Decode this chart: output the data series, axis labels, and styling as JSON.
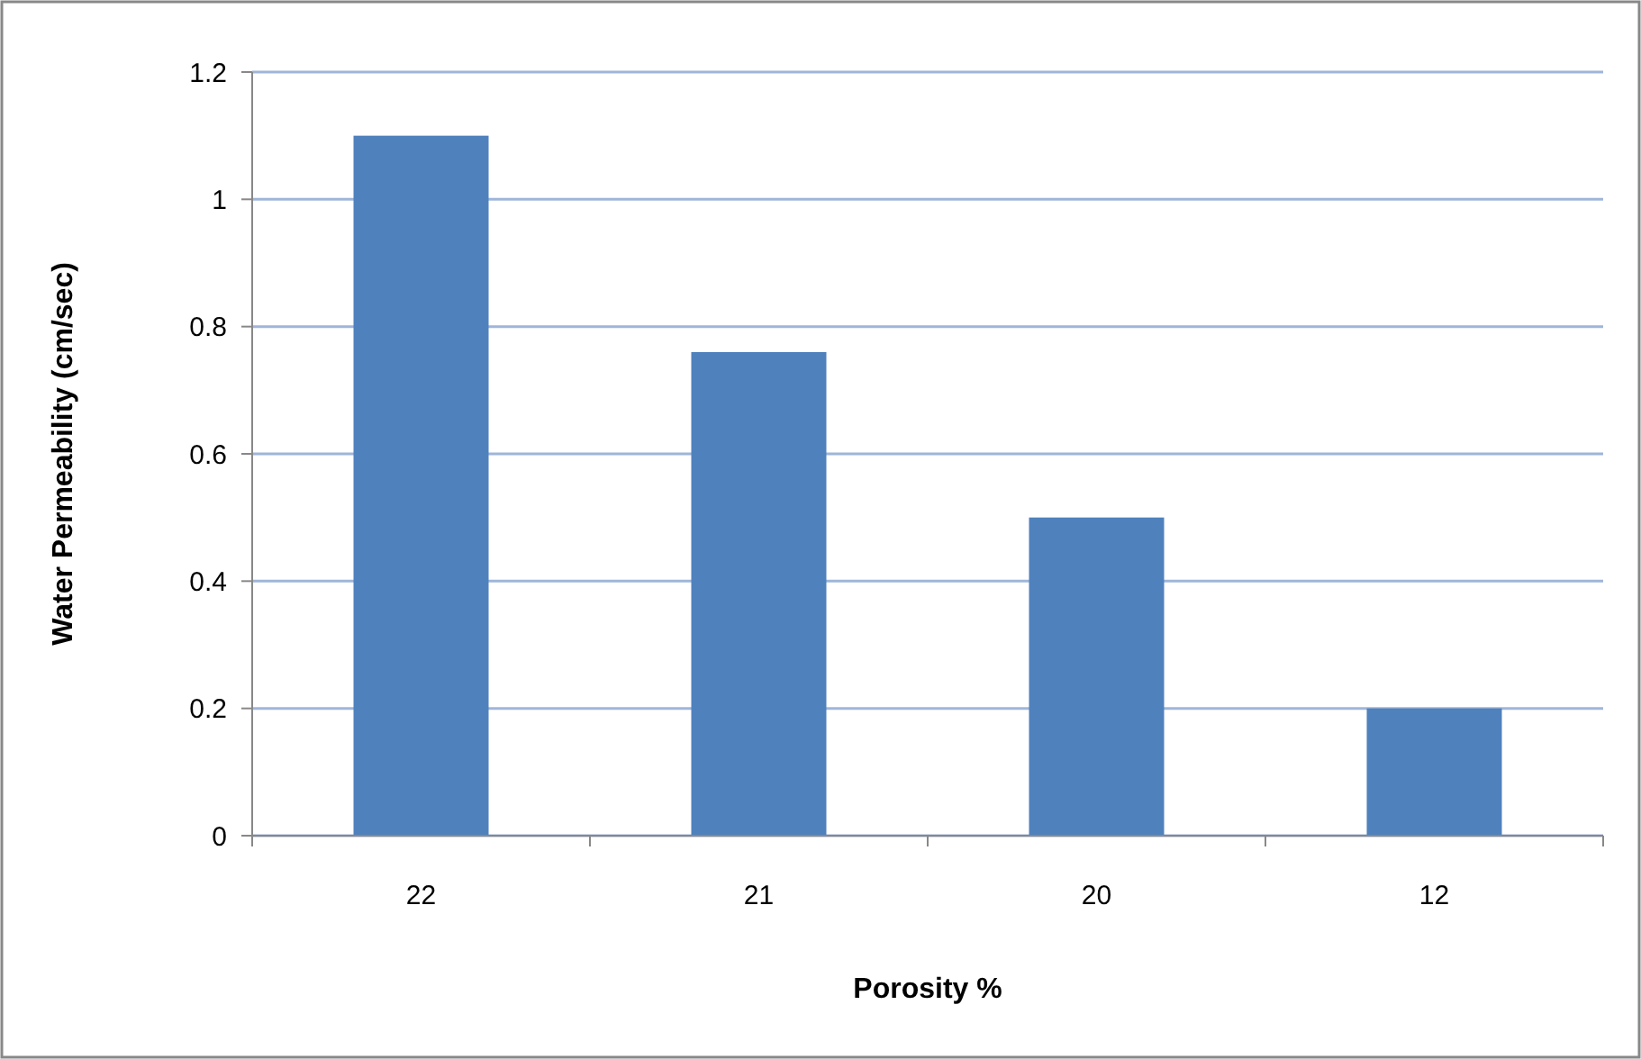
{
  "chart_data": {
    "type": "bar",
    "xlabel": "Porosity %",
    "ylabel": "Water Permeability (cm/sec)",
    "categories": [
      "22",
      "21",
      "20",
      "12"
    ],
    "values": [
      1.1,
      0.76,
      0.5,
      0.2
    ],
    "color": "#4f81bd",
    "ylim": [
      0,
      1.2
    ],
    "yticks": [
      0,
      0.2,
      0.4,
      0.6,
      0.8,
      1,
      1.2
    ],
    "grid": "y"
  }
}
